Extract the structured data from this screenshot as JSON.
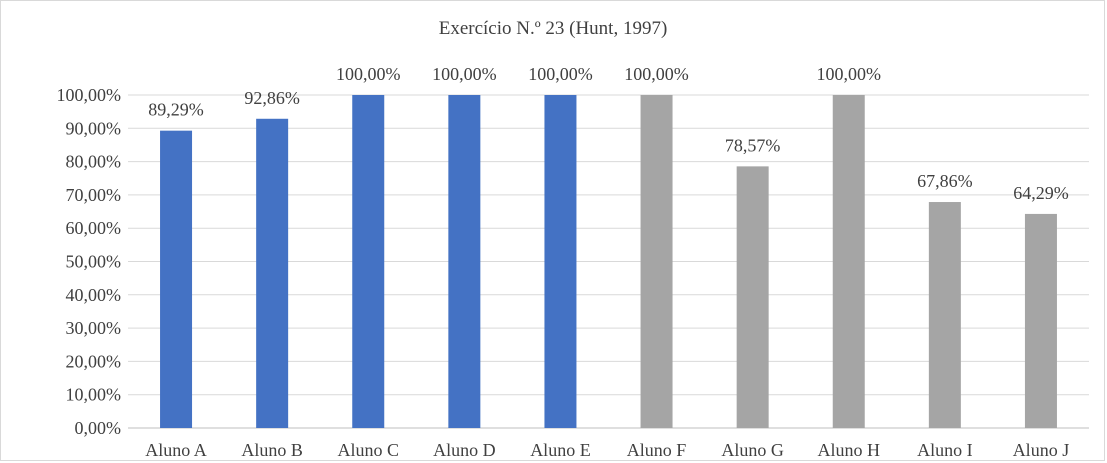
{
  "chart_data": {
    "type": "bar",
    "title": "Exercício N.º 23 (Hunt, 1997)",
    "categories": [
      "Aluno A",
      "Aluno B",
      "Aluno C",
      "Aluno D",
      "Aluno E",
      "Aluno F",
      "Aluno G",
      "Aluno H",
      "Aluno I",
      "Aluno J"
    ],
    "values": [
      89.29,
      92.86,
      100,
      100,
      100,
      100,
      78.57,
      100,
      67.86,
      64.29
    ],
    "data_labels": [
      "89,29%",
      "92,86%",
      "100,00%",
      "100,00%",
      "100,00%",
      "100,00%",
      "78,57%",
      "100,00%",
      "67,86%",
      "64,29%"
    ],
    "bar_colors": [
      "#4472c4",
      "#4472c4",
      "#4472c4",
      "#4472c4",
      "#4472c4",
      "#a5a5a5",
      "#a5a5a5",
      "#a5a5a5",
      "#a5a5a5",
      "#a5a5a5"
    ],
    "y_ticks": [
      0,
      10,
      20,
      30,
      40,
      50,
      60,
      70,
      80,
      90,
      100
    ],
    "y_tick_labels": [
      "0,00%",
      "10,00%",
      "20,00%",
      "30,00%",
      "40,00%",
      "50,00%",
      "60,00%",
      "70,00%",
      "80,00%",
      "90,00%",
      "100,00%"
    ],
    "xlabel": "",
    "ylabel": "",
    "ylim": [
      0,
      100
    ],
    "grid": true,
    "legend": "none"
  }
}
